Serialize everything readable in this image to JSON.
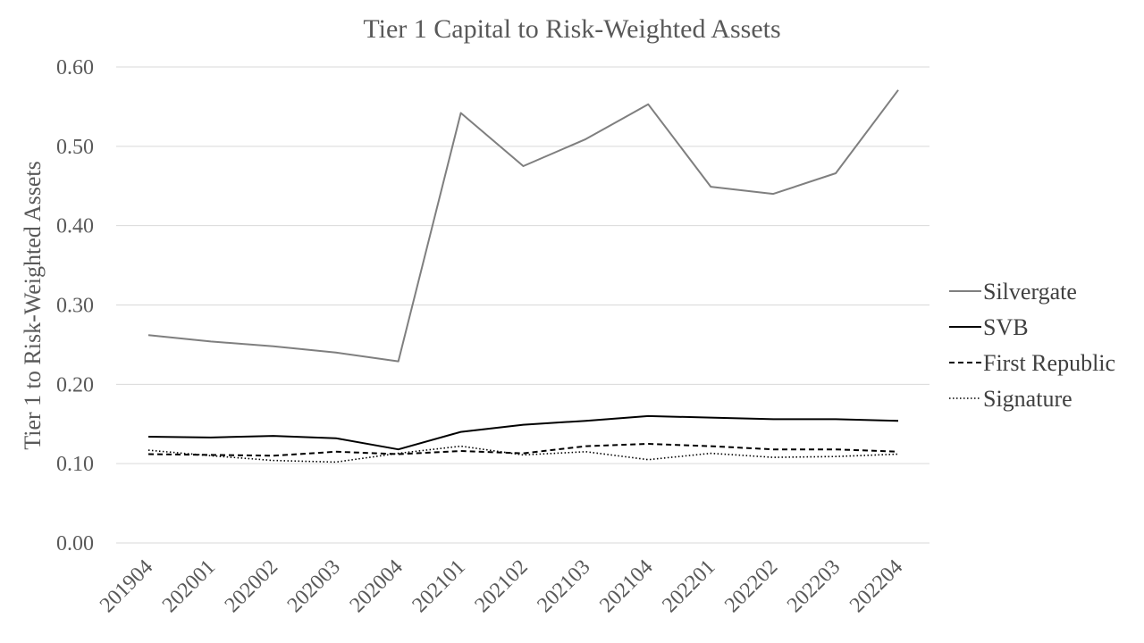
{
  "chart_data": {
    "type": "line",
    "title": "Tier 1 Capital to Risk-Weighted Assets",
    "xlabel": "",
    "ylabel": "Tier 1 to Risk-Weighted Assets",
    "ylim": [
      0,
      0.6
    ],
    "yticks": [
      "0.00",
      "0.10",
      "0.20",
      "0.30",
      "0.40",
      "0.50",
      "0.60"
    ],
    "grid": true,
    "legend_position": "right",
    "categories": [
      "201904",
      "202001",
      "202002",
      "202003",
      "202004",
      "202101",
      "202102",
      "202103",
      "202104",
      "202201",
      "202202",
      "202203",
      "202204"
    ],
    "series": [
      {
        "name": "Silvergate",
        "style": "solid",
        "color": "#7f7f7f",
        "values": [
          0.262,
          0.254,
          0.248,
          0.24,
          0.229,
          0.542,
          0.475,
          0.509,
          0.553,
          0.449,
          0.44,
          0.466,
          0.571
        ]
      },
      {
        "name": "SVB",
        "style": "solid",
        "color": "#000000",
        "values": [
          0.134,
          0.133,
          0.135,
          0.132,
          0.118,
          0.14,
          0.149,
          0.154,
          0.16,
          0.158,
          0.156,
          0.156,
          0.154
        ]
      },
      {
        "name": "First Republic",
        "style": "dashed",
        "color": "#000000",
        "values": [
          0.112,
          0.111,
          0.11,
          0.115,
          0.112,
          0.116,
          0.113,
          0.122,
          0.125,
          0.122,
          0.118,
          0.118,
          0.115
        ]
      },
      {
        "name": "Signature",
        "style": "dotted",
        "color": "#000000",
        "values": [
          0.117,
          0.11,
          0.104,
          0.102,
          0.113,
          0.122,
          0.111,
          0.115,
          0.105,
          0.113,
          0.108,
          0.109,
          0.112
        ]
      }
    ]
  }
}
